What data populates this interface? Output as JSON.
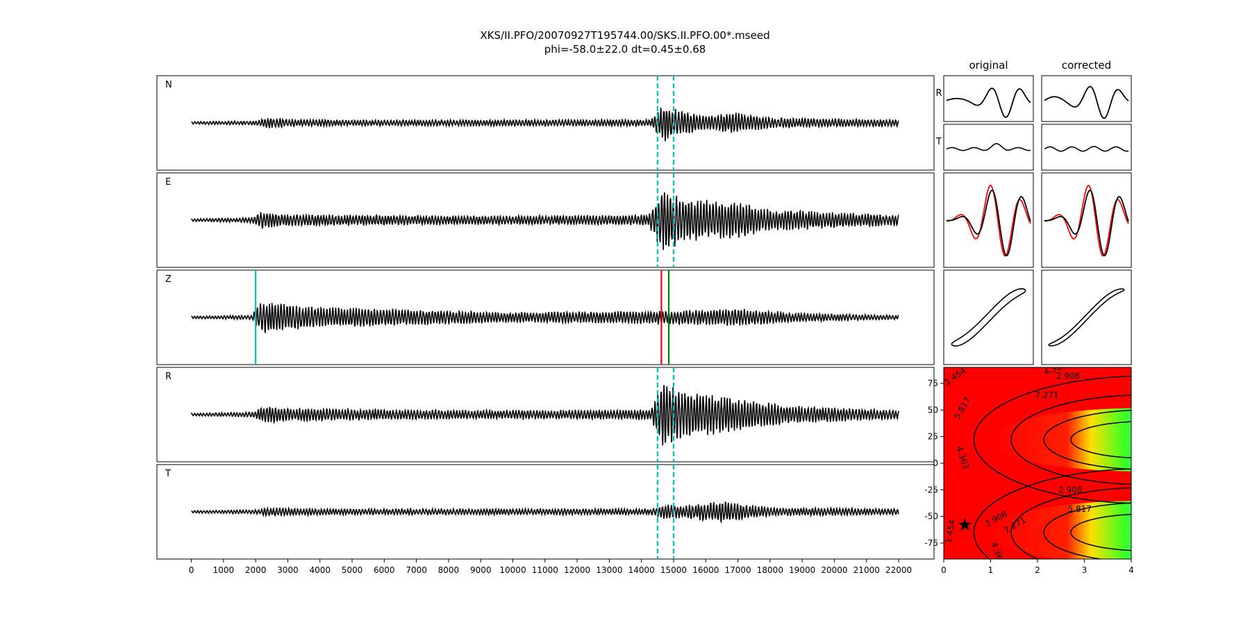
{
  "figure": {
    "title_line1": "XKS/II.PFO/20070927T195744.00/SKS.II.PFO.00*.mseed",
    "title_line2": "phi=-58.0±22.0 dt=0.45±0.68"
  },
  "chart_data": [
    {
      "type": "line",
      "name": "waveforms",
      "panels": [
        "N",
        "E",
        "Z",
        "R",
        "T"
      ],
      "x_ticks": [
        0,
        1000,
        2000,
        3000,
        4000,
        5000,
        6000,
        7000,
        8000,
        9000,
        10000,
        11000,
        12000,
        13000,
        14000,
        15000,
        16000,
        17000,
        18000,
        19000,
        20000,
        21000,
        22000
      ],
      "xlim": [
        -1070,
        23100
      ],
      "trace_range": [
        0,
        22000
      ],
      "markers": {
        "window_dashed": {
          "positions": [
            14500,
            15000
          ],
          "color": "#00bfbf",
          "panels": [
            "N",
            "E",
            "R",
            "T"
          ]
        },
        "z_lines": [
          {
            "position": 2000,
            "color": "#00bfbf"
          },
          {
            "position": 14620,
            "color": "#ff0000"
          },
          {
            "position": 14850,
            "color": "#008000"
          }
        ]
      },
      "amplitude_envelope": {
        "N": [
          [
            0,
            0.03
          ],
          [
            2000,
            0.05
          ],
          [
            2400,
            0.13
          ],
          [
            3200,
            0.08
          ],
          [
            5000,
            0.07
          ],
          [
            8000,
            0.07
          ],
          [
            14300,
            0.08
          ],
          [
            14700,
            0.45
          ],
          [
            15000,
            0.35
          ],
          [
            16000,
            0.15
          ],
          [
            16800,
            0.25
          ],
          [
            18000,
            0.12
          ],
          [
            22000,
            0.08
          ]
        ],
        "E": [
          [
            0,
            0.03
          ],
          [
            1900,
            0.06
          ],
          [
            2200,
            0.2
          ],
          [
            3000,
            0.14
          ],
          [
            5000,
            0.12
          ],
          [
            10000,
            0.1
          ],
          [
            14200,
            0.12
          ],
          [
            14700,
            0.8
          ],
          [
            15200,
            0.5
          ],
          [
            16800,
            0.45
          ],
          [
            18000,
            0.25
          ],
          [
            22000,
            0.12
          ]
        ],
        "Z": [
          [
            0,
            0.03
          ],
          [
            1900,
            0.05
          ],
          [
            2000,
            0.28
          ],
          [
            2300,
            0.38
          ],
          [
            3500,
            0.25
          ],
          [
            6000,
            0.2
          ],
          [
            10000,
            0.12
          ],
          [
            14600,
            0.15
          ],
          [
            17000,
            0.2
          ],
          [
            19000,
            0.1
          ],
          [
            22000,
            0.05
          ]
        ],
        "R": [
          [
            0,
            0.03
          ],
          [
            1900,
            0.06
          ],
          [
            2300,
            0.2
          ],
          [
            3000,
            0.16
          ],
          [
            6000,
            0.12
          ],
          [
            10000,
            0.1
          ],
          [
            14300,
            0.12
          ],
          [
            14700,
            0.85
          ],
          [
            15200,
            0.55
          ],
          [
            16500,
            0.45
          ],
          [
            18500,
            0.22
          ],
          [
            22000,
            0.1
          ]
        ],
        "T": [
          [
            0,
            0.03
          ],
          [
            2000,
            0.05
          ],
          [
            2400,
            0.1
          ],
          [
            4000,
            0.07
          ],
          [
            9000,
            0.07
          ],
          [
            14300,
            0.07
          ],
          [
            14700,
            0.18
          ],
          [
            15200,
            0.15
          ],
          [
            16500,
            0.25
          ],
          [
            18000,
            0.1
          ],
          [
            22000,
            0.07
          ]
        ]
      }
    },
    {
      "type": "line",
      "name": "particle-motion",
      "column_titles": [
        "original",
        "corrected"
      ],
      "row_labels": [
        "R",
        "T"
      ],
      "series_colors": {
        "black": "#000000",
        "red": "#ff0000"
      }
    },
    {
      "type": "heatmap",
      "name": "error-surface",
      "x_ticks": [
        0,
        1,
        2,
        3,
        4
      ],
      "y_ticks": [
        75,
        50,
        25,
        0,
        -25,
        -50,
        -75
      ],
      "xlim": [
        0,
        4
      ],
      "ylim": [
        -90,
        90
      ],
      "best_fit": {
        "dt": 0.45,
        "phi": -58.0
      },
      "contour_labels": [
        "1.454",
        "2.908",
        "4.363",
        "5.817",
        "7.271"
      ],
      "colormap": "gist_rainbow_r"
    }
  ]
}
